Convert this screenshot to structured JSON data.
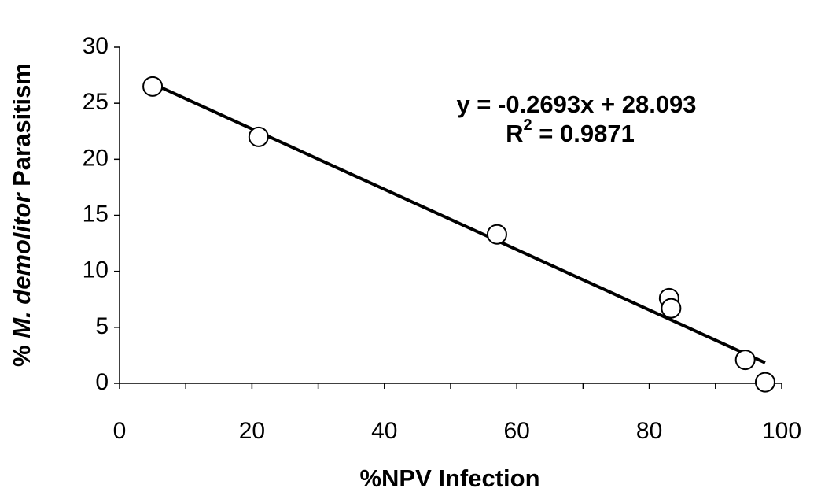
{
  "chart_data": {
    "type": "scatter",
    "x_label": "%NPV Infection",
    "y_label": [
      "% ",
      "M. demolitor",
      " Parasitism"
    ],
    "x": [
      5,
      21,
      57,
      83,
      83.3,
      94.5,
      97.5
    ],
    "values": [
      26.5,
      22,
      13.3,
      7.6,
      6.7,
      2.1,
      0.1
    ],
    "color": "#000000",
    "xlim": [
      0,
      100
    ],
    "xticks": [
      0,
      20,
      40,
      60,
      80,
      100
    ],
    "xminorticks": [
      10,
      30,
      50,
      70,
      90
    ],
    "ylim": [
      0,
      30
    ],
    "yticks": [
      0,
      5,
      10,
      15,
      20,
      25,
      30
    ],
    "trendline": {
      "slope": -0.2693,
      "intercept": 28.093,
      "x_range": [
        5,
        97.5
      ]
    },
    "equation": "y = -0.2693x + 28.093",
    "r_squared": {
      "base": "R",
      "sup": "2",
      "rest": " = 0.9871"
    }
  }
}
